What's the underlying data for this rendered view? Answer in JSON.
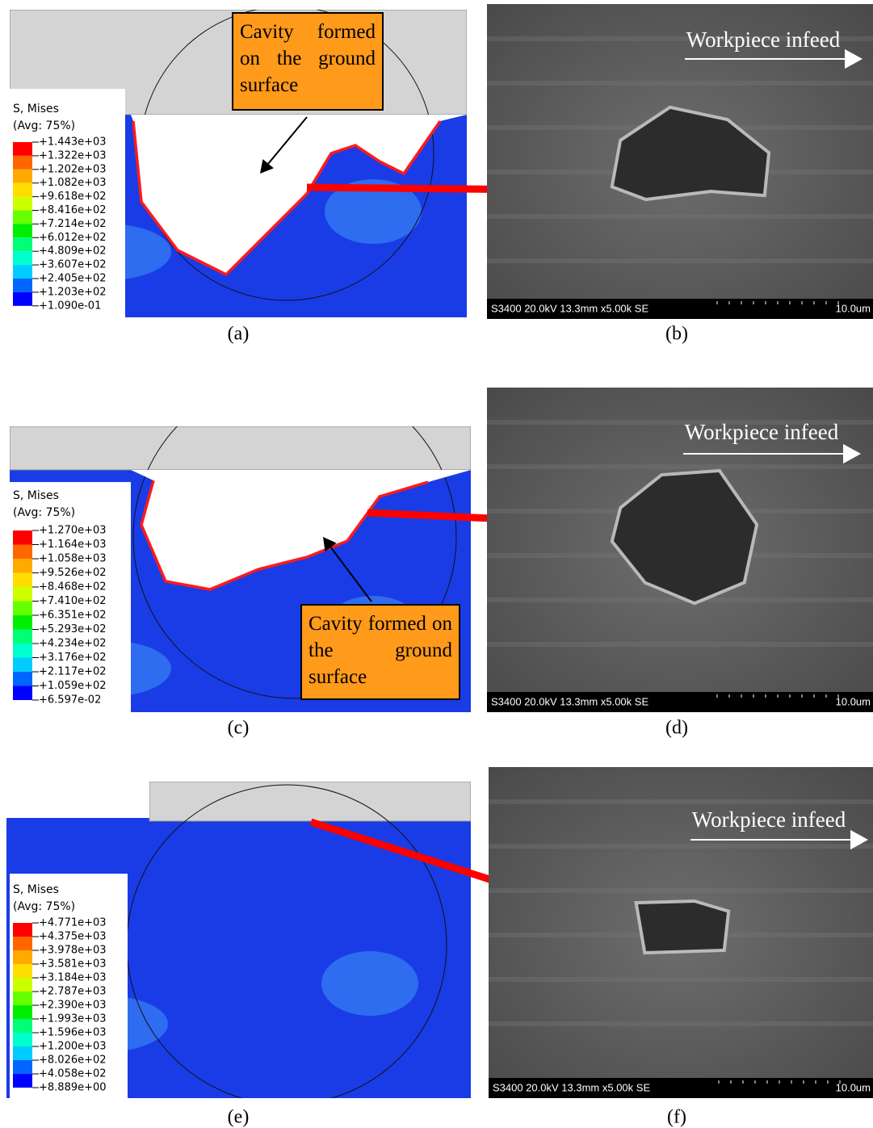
{
  "panels": [
    {
      "label": "(a)",
      "annotation": "Cavity formed on the ground surface",
      "legend": {
        "title": "S, Mises",
        "subtitle": "(Avg: 75%)",
        "values": [
          "+1.443e+03",
          "+1.322e+03",
          "+1.202e+03",
          "+1.082e+03",
          "+9.618e+02",
          "+8.416e+02",
          "+7.214e+02",
          "+6.012e+02",
          "+4.809e+02",
          "+3.607e+02",
          "+2.405e+02",
          "+1.203e+02",
          "+1.090e-01"
        ]
      }
    },
    {
      "label": "(b)",
      "direction": "Workpiece infeed",
      "info": "S3400 20.0kV 13.3mm x5.00k SE",
      "scale": "10.0um"
    },
    {
      "label": "(c)",
      "annotation": "Cavity formed on the ground surface",
      "legend": {
        "title": "S, Mises",
        "subtitle": "(Avg: 75%)",
        "values": [
          "+1.270e+03",
          "+1.164e+03",
          "+1.058e+03",
          "+9.526e+02",
          "+8.468e+02",
          "+7.410e+02",
          "+6.351e+02",
          "+5.293e+02",
          "+4.234e+02",
          "+3.176e+02",
          "+2.117e+02",
          "+1.059e+02",
          "+6.597e-02"
        ]
      }
    },
    {
      "label": "(d)",
      "direction": "Workpiece infeed",
      "info": "S3400 20.0kV 13.3mm x5.00k SE",
      "scale": "10.0um"
    },
    {
      "label": "(e)",
      "legend": {
        "title": "S, Mises",
        "subtitle": "(Avg: 75%)",
        "values": [
          "+4.771e+03",
          "+4.375e+03",
          "+3.978e+03",
          "+3.581e+03",
          "+3.184e+03",
          "+2.787e+03",
          "+2.390e+03",
          "+1.993e+03",
          "+1.596e+03",
          "+1.200e+03",
          "+8.026e+02",
          "+4.058e+02",
          "+8.889e+00"
        ]
      }
    },
    {
      "label": "(f)",
      "direction": "Workpiece infeed",
      "info": "S3400 20.0kV 13.3mm x5.00k SE",
      "scale": "10.0um"
    }
  ]
}
